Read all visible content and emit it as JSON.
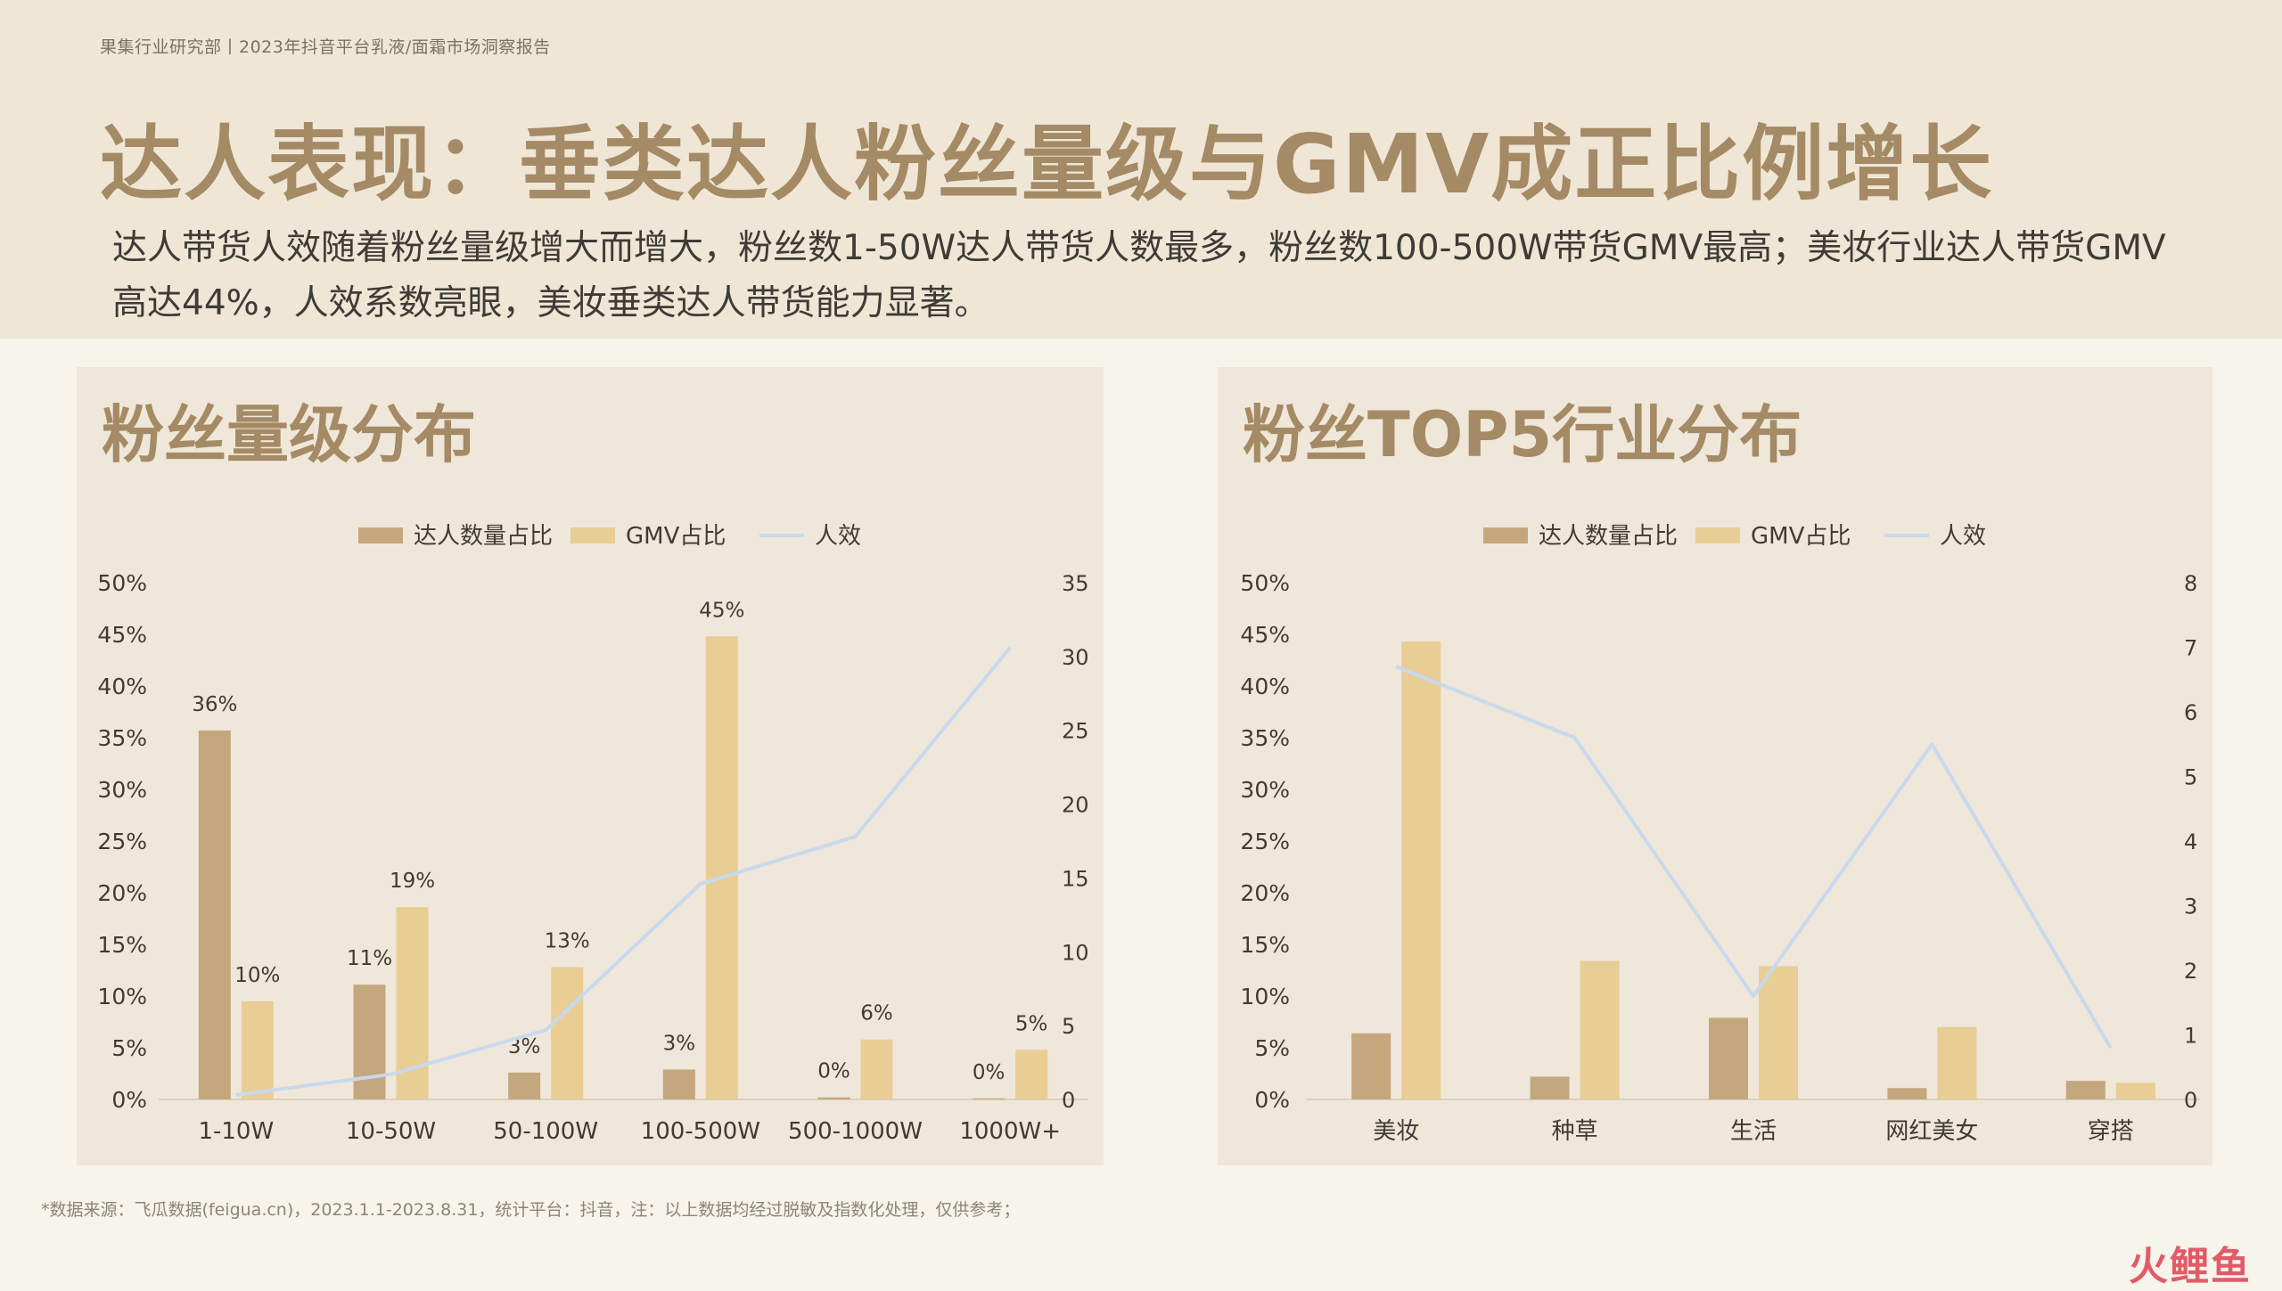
{
  "header": {
    "breadcrumb": "果集行业研究部丨2023年抖音平台乳液/面霜市场洞察报告",
    "title": "达人表现：垂类达人粉丝量级与GMV成正比例增长",
    "subtitle": "达人带货人效随着粉丝量级增大而增大，粉丝数1-50W达人带货人数最多，粉丝数100-500W带货GMV最高；美妆行业达人带货GMV高达44%，人效系数亮眼，美妆垂类达人带货能力显著。"
  },
  "panels": {
    "left_title": "粉丝量级分布",
    "right_title": "粉丝TOP5行业分布"
  },
  "footnote": "*数据来源：飞瓜数据(feigua.cn)，2023.1.1-2023.8.31，统计平台：抖音，注：以上数据均经过脱敏及指数化处理，仅供参考；",
  "brand": "火鲤鱼",
  "colors": {
    "talent_share": "#c5a77e",
    "gmv_share": "#e8cd95",
    "efficiency": "#c8d9ee",
    "axis_text": "#3f3b35"
  },
  "chart_data": [
    {
      "type": "bar",
      "categories": [
        "1-10W",
        "10-50W",
        "50-100W",
        "100-500W",
        "500-1000W",
        "1000W+"
      ],
      "series": [
        {
          "name": "达人数量占比",
          "axis": "left",
          "values": [
            0.357,
            0.111,
            0.026,
            0.029,
            0.002,
            0.001
          ],
          "labels": [
            "36%",
            "11%",
            "3%",
            "3%",
            "0%",
            "0%"
          ]
        },
        {
          "name": "GMV占比",
          "axis": "left",
          "values": [
            0.095,
            0.186,
            0.128,
            0.448,
            0.058,
            0.048
          ],
          "labels": [
            "10%",
            "19%",
            "13%",
            "45%",
            "6%",
            "5%"
          ]
        },
        {
          "name": "人效",
          "axis": "right",
          "type": "line",
          "values": [
            0.3,
            1.7,
            4.7,
            14.6,
            17.8,
            30.6
          ]
        }
      ],
      "y_left": {
        "ticks": [
          "0%",
          "5%",
          "10%",
          "15%",
          "20%",
          "25%",
          "30%",
          "35%",
          "40%",
          "45%",
          "50%"
        ],
        "range": [
          0,
          0.5
        ]
      },
      "y_right": {
        "ticks": [
          "0",
          "5",
          "10",
          "15",
          "20",
          "25",
          "30",
          "35"
        ],
        "range": [
          0,
          35
        ]
      },
      "legend": "top-center",
      "grid": false
    },
    {
      "type": "bar",
      "categories": [
        "美妆",
        "种草",
        "生活",
        "网红美女",
        "穿搭"
      ],
      "series": [
        {
          "name": "达人数量占比",
          "axis": "left",
          "values": [
            0.064,
            0.022,
            0.079,
            0.011,
            0.018
          ]
        },
        {
          "name": "GMV占比",
          "axis": "left",
          "values": [
            0.443,
            0.134,
            0.129,
            0.07,
            0.016
          ]
        },
        {
          "name": "人效",
          "axis": "right",
          "type": "line",
          "values": [
            6.7,
            5.6,
            1.6,
            5.5,
            0.8
          ]
        }
      ],
      "y_left": {
        "ticks": [
          "0%",
          "5%",
          "10%",
          "15%",
          "20%",
          "25%",
          "30%",
          "35%",
          "40%",
          "45%",
          "50%"
        ],
        "range": [
          0,
          0.5
        ]
      },
      "y_right": {
        "ticks": [
          "0",
          "1",
          "2",
          "3",
          "4",
          "5",
          "6",
          "7",
          "8"
        ],
        "range": [
          0,
          8
        ]
      },
      "legend": "top-center",
      "grid": false
    }
  ]
}
